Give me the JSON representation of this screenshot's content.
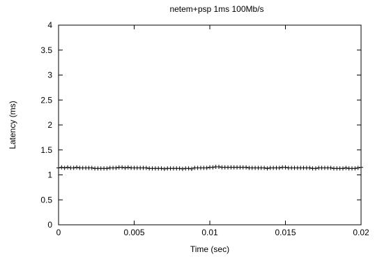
{
  "chart_data": {
    "type": "scatter",
    "title": "netem+psp 1ms 100Mb/s",
    "xlabel": "Time (sec)",
    "ylabel": "Latency (ms)",
    "xlim": [
      0,
      0.02
    ],
    "ylim": [
      0,
      4
    ],
    "xticks": [
      "0",
      "0.005",
      "0.01",
      "0.015",
      "0.02"
    ],
    "yticks": [
      "0",
      "0.5",
      "1",
      "1.5",
      "2",
      "2.5",
      "3",
      "3.5",
      "4"
    ],
    "grid": false,
    "marker": "plus",
    "series": [
      {
        "x": [
          0.0,
          0.0002,
          0.0004,
          0.0006,
          0.0008,
          0.001,
          0.0012,
          0.0014,
          0.0016,
          0.0018,
          0.002,
          0.0022,
          0.0024,
          0.0026,
          0.0028,
          0.003,
          0.0032,
          0.0034,
          0.0036,
          0.0038,
          0.004,
          0.0042,
          0.0044,
          0.0046,
          0.0048,
          0.005,
          0.0052,
          0.0054,
          0.0056,
          0.0058,
          0.006,
          0.0062,
          0.0064,
          0.0066,
          0.0068,
          0.007,
          0.0072,
          0.0074,
          0.0076,
          0.0078,
          0.008,
          0.0082,
          0.0084,
          0.0086,
          0.0088,
          0.009,
          0.0092,
          0.0094,
          0.0096,
          0.0098,
          0.01,
          0.0102,
          0.0104,
          0.0106,
          0.0108,
          0.011,
          0.0112,
          0.0114,
          0.0116,
          0.0118,
          0.012,
          0.0122,
          0.0124,
          0.0126,
          0.0128,
          0.013,
          0.0132,
          0.0134,
          0.0136,
          0.0138,
          0.014,
          0.0142,
          0.0144,
          0.0146,
          0.0148,
          0.015,
          0.0152,
          0.0154,
          0.0156,
          0.0158,
          0.016,
          0.0162,
          0.0164,
          0.0166,
          0.0168,
          0.017,
          0.0172,
          0.0174,
          0.0176,
          0.0178,
          0.018,
          0.0182,
          0.0184,
          0.0186,
          0.0188,
          0.019,
          0.0192,
          0.0194,
          0.0196,
          0.0198,
          0.02
        ],
        "y": [
          1.14,
          1.15,
          1.14,
          1.15,
          1.14,
          1.14,
          1.15,
          1.14,
          1.14,
          1.14,
          1.14,
          1.14,
          1.13,
          1.13,
          1.13,
          1.13,
          1.13,
          1.14,
          1.14,
          1.14,
          1.15,
          1.15,
          1.14,
          1.15,
          1.14,
          1.14,
          1.14,
          1.14,
          1.14,
          1.14,
          1.13,
          1.13,
          1.13,
          1.13,
          1.13,
          1.12,
          1.13,
          1.13,
          1.13,
          1.13,
          1.13,
          1.12,
          1.13,
          1.13,
          1.12,
          1.14,
          1.14,
          1.14,
          1.14,
          1.14,
          1.15,
          1.15,
          1.16,
          1.16,
          1.15,
          1.15,
          1.15,
          1.15,
          1.15,
          1.15,
          1.15,
          1.15,
          1.15,
          1.14,
          1.14,
          1.14,
          1.14,
          1.14,
          1.14,
          1.13,
          1.14,
          1.14,
          1.14,
          1.14,
          1.15,
          1.15,
          1.14,
          1.14,
          1.14,
          1.14,
          1.14,
          1.14,
          1.14,
          1.14,
          1.13,
          1.13,
          1.14,
          1.14,
          1.14,
          1.14,
          1.14,
          1.13,
          1.13,
          1.13,
          1.13,
          1.14,
          1.13,
          1.13,
          1.13,
          1.14,
          1.15
        ]
      }
    ]
  }
}
